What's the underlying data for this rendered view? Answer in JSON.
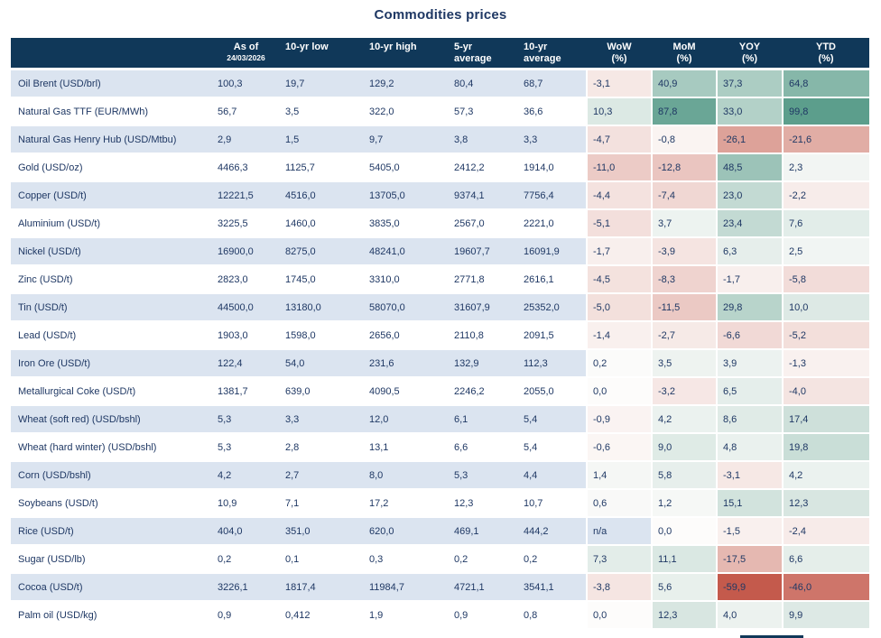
{
  "chart_data": {
    "type": "table",
    "title": "Commodities prices",
    "columns": [
      {
        "id": "name",
        "label": ""
      },
      {
        "id": "asof",
        "label": "As of",
        "sub": "24/03/2026"
      },
      {
        "id": "low",
        "label": "10-yr low"
      },
      {
        "id": "high",
        "label": "10-yr high"
      },
      {
        "id": "avg5",
        "label": "5-yr",
        "sub": "average"
      },
      {
        "id": "avg10",
        "label": "10-yr",
        "sub": "average"
      },
      {
        "id": "wow",
        "label": "WoW",
        "sub": "(%)"
      },
      {
        "id": "mom",
        "label": "MoM",
        "sub": "(%)"
      },
      {
        "id": "yoy",
        "label": "YOY",
        "sub": "(%)"
      },
      {
        "id": "ytd",
        "label": "YTD",
        "sub": "(%)"
      }
    ],
    "rows": [
      {
        "name": "Oil Brent (USD/brl)",
        "asof": "100,3",
        "low": "19,7",
        "high": "129,2",
        "avg5": "80,4",
        "avg10": "68,7",
        "wow": "-3,1",
        "mom": "40,9",
        "yoy": "37,3",
        "ytd": "64,8"
      },
      {
        "name": "Natural Gas TTF (EUR/MWh)",
        "asof": "56,7",
        "low": "3,5",
        "high": "322,0",
        "avg5": "57,3",
        "avg10": "36,6",
        "wow": "10,3",
        "mom": "87,8",
        "yoy": "33,0",
        "ytd": "99,8"
      },
      {
        "name": "Natural Gas Henry Hub (USD/Mtbu)",
        "asof": "2,9",
        "low": "1,5",
        "high": "9,7",
        "avg5": "3,8",
        "avg10": "3,3",
        "wow": "-4,7",
        "mom": "-0,8",
        "yoy": "-26,1",
        "ytd": "-21,6"
      },
      {
        "name": "Gold (USD/oz)",
        "asof": "4466,3",
        "low": "1125,7",
        "high": "5405,0",
        "avg5": "2412,2",
        "avg10": "1914,0",
        "wow": "-11,0",
        "mom": "-12,8",
        "yoy": "48,5",
        "ytd": "2,3"
      },
      {
        "name": "Copper (USD/t)",
        "asof": "12221,5",
        "low": "4516,0",
        "high": "13705,0",
        "avg5": "9374,1",
        "avg10": "7756,4",
        "wow": "-4,4",
        "mom": "-7,4",
        "yoy": "23,0",
        "ytd": "-2,2"
      },
      {
        "name": "Aluminium (USD/t)",
        "asof": "3225,5",
        "low": "1460,0",
        "high": "3835,0",
        "avg5": "2567,0",
        "avg10": "2221,0",
        "wow": "-5,1",
        "mom": "3,7",
        "yoy": "23,4",
        "ytd": "7,6"
      },
      {
        "name": "Nickel (USD/t)",
        "asof": "16900,0",
        "low": "8275,0",
        "high": "48241,0",
        "avg5": "19607,7",
        "avg10": "16091,9",
        "wow": "-1,7",
        "mom": "-3,9",
        "yoy": "6,3",
        "ytd": "2,5"
      },
      {
        "name": "Zinc (USD/t)",
        "asof": "2823,0",
        "low": "1745,0",
        "high": "3310,0",
        "avg5": "2771,8",
        "avg10": "2616,1",
        "wow": "-4,5",
        "mom": "-8,3",
        "yoy": "-1,7",
        "ytd": "-5,8"
      },
      {
        "name": "Tin (USD/t)",
        "asof": "44500,0",
        "low": "13180,0",
        "high": "58070,0",
        "avg5": "31607,9",
        "avg10": "25352,0",
        "wow": "-5,0",
        "mom": "-11,5",
        "yoy": "29,8",
        "ytd": "10,0"
      },
      {
        "name": "Lead (USD/t)",
        "asof": "1903,0",
        "low": "1598,0",
        "high": "2656,0",
        "avg5": "2110,8",
        "avg10": "2091,5",
        "wow": "-1,4",
        "mom": "-2,7",
        "yoy": "-6,6",
        "ytd": "-5,2"
      },
      {
        "name": "Iron Ore (USD/t)",
        "asof": "122,4",
        "low": "54,0",
        "high": "231,6",
        "avg5": "132,9",
        "avg10": "112,3",
        "wow": "0,2",
        "mom": "3,5",
        "yoy": "3,9",
        "ytd": "-1,3"
      },
      {
        "name": "Metallurgical Coke (USD/t)",
        "asof": "1381,7",
        "low": "639,0",
        "high": "4090,5",
        "avg5": "2246,2",
        "avg10": "2055,0",
        "wow": "0,0",
        "mom": "-3,2",
        "yoy": "6,5",
        "ytd": "-4,0"
      },
      {
        "name": "Wheat (soft red) (USD/bshl)",
        "asof": "5,3",
        "low": "3,3",
        "high": "12,0",
        "avg5": "6,1",
        "avg10": "5,4",
        "wow": "-0,9",
        "mom": "4,2",
        "yoy": "8,6",
        "ytd": "17,4"
      },
      {
        "name": "Wheat (hard winter) (USD/bshl)",
        "asof": "5,3",
        "low": "2,8",
        "high": "13,1",
        "avg5": "6,6",
        "avg10": "5,4",
        "wow": "-0,6",
        "mom": "9,0",
        "yoy": "4,8",
        "ytd": "19,8"
      },
      {
        "name": "Corn (USD/bshl)",
        "asof": "4,2",
        "low": "2,7",
        "high": "8,0",
        "avg5": "5,3",
        "avg10": "4,4",
        "wow": "1,4",
        "mom": "5,8",
        "yoy": "-3,1",
        "ytd": "4,2"
      },
      {
        "name": "Soybeans (USD/t)",
        "asof": "10,9",
        "low": "7,1",
        "high": "17,2",
        "avg5": "12,3",
        "avg10": "10,7",
        "wow": "0,6",
        "mom": "1,2",
        "yoy": "15,1",
        "ytd": "12,3"
      },
      {
        "name": "Rice (USD/t)",
        "asof": "404,0",
        "low": "351,0",
        "high": "620,0",
        "avg5": "469,1",
        "avg10": "444,2",
        "wow": "n/a",
        "mom": "0,0",
        "yoy": "-1,5",
        "ytd": "-2,4"
      },
      {
        "name": "Sugar (USD/lb)",
        "asof": "0,2",
        "low": "0,1",
        "high": "0,3",
        "avg5": "0,2",
        "avg10": "0,2",
        "wow": "7,3",
        "mom": "11,1",
        "yoy": "-17,5",
        "ytd": "6,6"
      },
      {
        "name": "Cocoa (USD/t)",
        "asof": "3226,1",
        "low": "1817,4",
        "high": "11984,7",
        "avg5": "4721,1",
        "avg10": "3541,1",
        "wow": "-3,8",
        "mom": "5,6",
        "yoy": "-59,9",
        "ytd": "-46,0"
      },
      {
        "name": "Palm oil (USD/kg)",
        "asof": "0,9",
        "low": "0,412",
        "high": "1,9",
        "avg5": "0,9",
        "avg10": "0,8",
        "wow": "0,0",
        "mom": "12,3",
        "yoy": "4,0",
        "ytd": "9,9"
      }
    ],
    "layout_hints": {
      "heat_columns": [
        "wow",
        "mom",
        "yoy",
        "ytd"
      ],
      "striped_rows": "odd"
    }
  },
  "style_colors": {
    "header_bg": "#103859",
    "stripe_bg": "#dbe4f0",
    "text": "#1f3864",
    "title_text": "#1f3864",
    "heatmap": {
      "neutral": "#fdfcfb",
      "positive": "#5c9e8c",
      "negative": "#c45a4c",
      "positive_range": 100,
      "negative_range": 60,
      "easing": 0.7
    }
  }
}
